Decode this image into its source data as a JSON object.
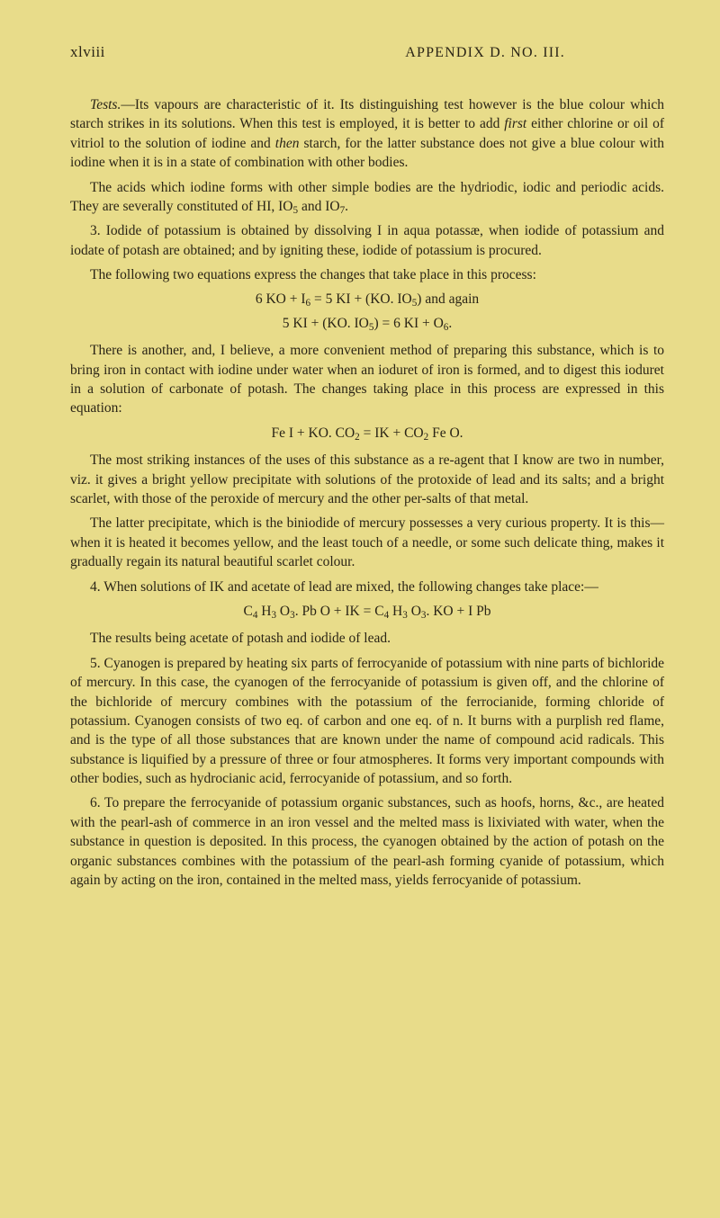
{
  "page": {
    "number": "xlviii",
    "running_head": "APPENDIX D. NO. III."
  },
  "p1": "Tests.—Its vapours are characteristic of it. Its distinguishing test however is the blue colour which starch strikes in its solutions. When this test is employed, it is better to add first either chlorine or oil of vitriol to the solution of iodine and then starch, for the latter substance does not give a blue colour with iodine when it is in a state of combination with other bodies.",
  "p2": "The acids which iodine forms with other simple bodies are the hydriodic, iodic and periodic acids. They are severally constituted of HI, IO₅ and IO₇.",
  "p3": "3. Iodide of potassium is obtained by dissolving I in aqua potassæ, when iodide of potassium and iodate of potash are obtained; and by igniting these, iodide of potassium is procured.",
  "p4": "The following two equations express the changes that take place in this process:",
  "eq1a": "6 KO + I₆ = 5 KI + (KO. IO₅) and again",
  "eq1b": "5 KI + (KO. IO₅) = 6 KI + O₆.",
  "p5": "There is another, and, I believe, a more convenient method of preparing this substance, which is to bring iron in contact with iodine under water when an ioduret of iron is formed, and to digest this ioduret in a solution of carbonate of potash. The changes taking place in this process are expressed in this equation:",
  "eq2": "Fe I + KO. CO₂ = IK + CO₂ Fe O.",
  "p6": "The most striking instances of the uses of this substance as a re-agent that I know are two in number, viz. it gives a bright yellow precipitate with solutions of the protoxide of lead and its salts; and a bright scarlet, with those of the peroxide of mercury and the other per-salts of that metal.",
  "p7": "The latter precipitate, which is the biniodide of mercury possesses a very curious property. It is this—when it is heated it becomes yellow, and the least touch of a needle, or some such delicate thing, makes it gradually regain its natural beautiful scarlet colour.",
  "p8": "4. When solutions of IK and acetate of lead are mixed, the following changes take place:—",
  "eq3": "C₄ H₃ O₃. Pb O + IK = C₄ H₃ O₃. KO + I Pb",
  "p9": "The results being acetate of potash and iodide of lead.",
  "p10": "5. Cyanogen is prepared by heating six parts of ferrocyanide of potassium with nine parts of bichloride of mercury. In this case, the cyanogen of the ferrocyanide of potassium is given off, and the chlorine of the bichloride of mercury combines with the potassium of the ferrocianide, forming chloride of potassium. Cyanogen consists of two eq. of carbon and one eq. of n. It burns with a purplish red flame, and is the type of all those substances that are known under the name of compound acid radicals. This substance is liquified by a pressure of three or four atmospheres. It forms very important compounds with other bodies, such as hydrocianic acid, ferrocyanide of potassium, and so forth.",
  "p11": "6. To prepare the ferrocyanide of potassium organic substances, such as hoofs, horns, &c., are heated with the pearl-ash of commerce in an iron vessel and the melted mass is lixiviated with water, when the substance in question is deposited. In this process, the cyanogen obtained by the action of potash on the organic substances combines with the potassium of the pearl-ash forming cyanide of potassium, which again by acting on the iron, contained in the melted mass, yields ferrocyanide of potassium."
}
